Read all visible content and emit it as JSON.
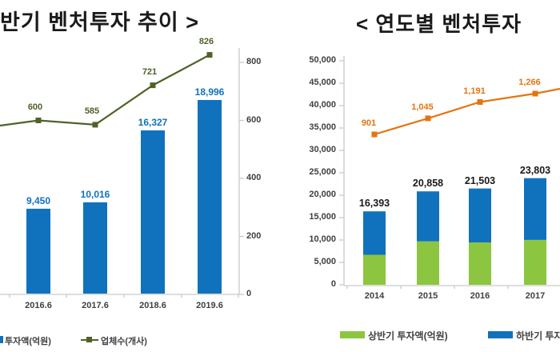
{
  "chart_data": [
    {
      "type": "bar+line",
      "title": "반기 벤처투자 추이 >",
      "categories": [
        "2016.6",
        "2017.6",
        "2018.6",
        "2019.6"
      ],
      "series": [
        {
          "name": "투자액(억원)",
          "type": "bar",
          "color": "#1072BC",
          "values": [
            9450,
            10016,
            16327,
            18996
          ]
        },
        {
          "name": "업체수(개사)",
          "type": "line",
          "color": "#4F6228",
          "values": [
            600,
            585,
            721,
            826
          ]
        }
      ],
      "right_axis": {
        "ticks": [
          0,
          200,
          400,
          600,
          800
        ],
        "range": [
          0,
          800
        ]
      },
      "hidden_bar_axis_min": 2000,
      "legend_position": "bottom",
      "grid": false,
      "clipped_edge": "left"
    },
    {
      "type": "stacked-bar+line",
      "title": "< 연도별 벤처투자",
      "categories": [
        "2014",
        "2015",
        "2016",
        "2017"
      ],
      "series": [
        {
          "name": "상반기 투자액(억원)",
          "type": "bar",
          "color": "#8CC540",
          "values": [
            6700,
            9700,
            9450,
            10016
          ]
        },
        {
          "name": "하반기 투자액(억원)",
          "type": "bar",
          "color": "#1072BC",
          "values": [
            9693,
            11158,
            12053,
            13787
          ]
        },
        {
          "name": "",
          "type": "line",
          "color": "#E6740E",
          "values": [
            901,
            1045,
            1191,
            1266
          ]
        }
      ],
      "stack_totals": [
        16393,
        20858,
        21503,
        23803
      ],
      "left_axis": {
        "ticks": [
          0,
          5000,
          10000,
          15000,
          20000,
          25000,
          30000,
          35000,
          40000,
          45000,
          50000
        ],
        "range": [
          0,
          50000
        ]
      },
      "legend_position": "bottom",
      "grid": false,
      "clipped_edge": "right"
    }
  ],
  "legends": {
    "left": [
      "투자액(억원)",
      "업체수(개사)"
    ],
    "right": [
      "상반기 투자액(억원)",
      "하반기 투자액(억원)"
    ]
  },
  "colors": {
    "bar_blue": "#1072BC",
    "bar_green": "#8CC540",
    "line_olive": "#4F6228",
    "line_orange": "#E6740E",
    "axis_line": "#C9C9C9",
    "axis_text": "#404040",
    "title_text": "#1a1a1a"
  }
}
